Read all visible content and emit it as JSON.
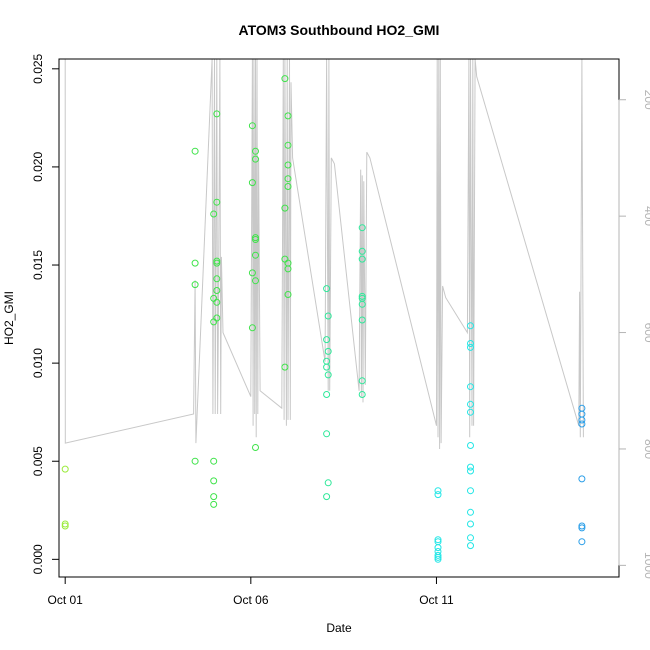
{
  "chart_data": {
    "type": "scatter",
    "title": "ATOM3 Southbound HO2_GMI",
    "xlabel": "Date",
    "ylabel": "HO2_GMI",
    "x_unit": "days",
    "xlim": [
      "2017-09-30T20:00",
      "2017-10-15T22:00"
    ],
    "x_ticks": [
      {
        "value": "2017-10-01",
        "label": "Oct 01"
      },
      {
        "value": "2017-10-06",
        "label": "Oct 06"
      },
      {
        "value": "2017-10-11",
        "label": "Oct 11"
      }
    ],
    "ylim": [
      -0.0009,
      0.0255
    ],
    "y_ticks": [
      0.0,
      0.005,
      0.01,
      0.015,
      0.02,
      0.025
    ],
    "y_tick_labels": [
      "0.000",
      "0.005",
      "0.010",
      "0.015",
      "0.020",
      "0.025"
    ],
    "secondary_axis": {
      "label": "",
      "color": "#b4b4b4",
      "ylim": [
        1020,
        130
      ],
      "reversed": true,
      "ticks": [
        200,
        400,
        600,
        800,
        1000
      ]
    },
    "pressure_profile": {
      "color": "#c8c8c8",
      "points": [
        [
          "2017-10-01T00:00",
          130
        ],
        [
          "2017-10-01T00:05",
          790
        ],
        [
          "2017-10-04T11:00",
          740
        ],
        [
          "2017-10-04T12:00",
          510
        ],
        [
          "2017-10-04T12:30",
          790
        ],
        [
          "2017-10-04T23:00",
          130
        ],
        [
          "2017-10-04T23:30",
          740
        ],
        [
          "2017-10-05T00:30",
          130
        ],
        [
          "2017-10-05T01:00",
          740
        ],
        [
          "2017-10-05T02:00",
          130
        ],
        [
          "2017-10-05T02:30",
          740
        ],
        [
          "2017-10-05T03:00",
          600
        ],
        [
          "2017-10-05T04:00",
          130
        ],
        [
          "2017-10-05T04:30",
          740
        ],
        [
          "2017-10-05T05:00",
          470
        ],
        [
          "2017-10-05T06:00",
          600
        ],
        [
          "2017-10-06T00:00",
          710
        ],
        [
          "2017-10-06T01:00",
          130
        ],
        [
          "2017-10-06T01:30",
          760
        ],
        [
          "2017-10-06T02:00",
          130
        ],
        [
          "2017-10-06T02:30",
          740
        ],
        [
          "2017-10-06T03:00",
          130
        ],
        [
          "2017-10-06T03:30",
          780
        ],
        [
          "2017-10-06T04:00",
          130
        ],
        [
          "2017-10-06T04:30",
          740
        ],
        [
          "2017-10-06T05:00",
          300
        ],
        [
          "2017-10-06T06:00",
          700
        ],
        [
          "2017-10-06T20:00",
          730
        ],
        [
          "2017-10-06T21:00",
          130
        ],
        [
          "2017-10-06T21:30",
          750
        ],
        [
          "2017-10-06T22:00",
          130
        ],
        [
          "2017-10-06T23:00",
          760
        ],
        [
          "2017-10-06T23:30",
          130
        ],
        [
          "2017-10-07T00:00",
          750
        ],
        [
          "2017-10-07T01:00",
          130
        ],
        [
          "2017-10-07T01:30",
          750
        ],
        [
          "2017-10-07T02:00",
          170
        ],
        [
          "2017-10-07T03:00",
          300
        ],
        [
          "2017-10-08T00:00",
          650
        ],
        [
          "2017-10-08T01:00",
          130
        ],
        [
          "2017-10-08T02:00",
          700
        ],
        [
          "2017-10-08T02:30",
          130
        ],
        [
          "2017-10-08T03:00",
          700
        ],
        [
          "2017-10-08T04:00",
          300
        ],
        [
          "2017-10-08T06:00",
          310
        ],
        [
          "2017-10-08T22:00",
          700
        ],
        [
          "2017-10-08T23:00",
          320
        ],
        [
          "2017-10-08T23:30",
          710
        ],
        [
          "2017-10-09T00:00",
          330
        ],
        [
          "2017-10-09T00:30",
          720
        ],
        [
          "2017-10-09T01:00",
          340
        ],
        [
          "2017-10-09T02:00",
          690
        ],
        [
          "2017-10-09T03:00",
          290
        ],
        [
          "2017-10-09T05:00",
          300
        ],
        [
          "2017-10-11T00:00",
          760
        ],
        [
          "2017-10-11T00:30",
          130
        ],
        [
          "2017-10-11T01:00",
          780
        ],
        [
          "2017-10-11T01:30",
          130
        ],
        [
          "2017-10-11T02:00",
          800
        ],
        [
          "2017-10-11T02:30",
          130
        ],
        [
          "2017-10-11T03:00",
          790
        ],
        [
          "2017-10-11T04:00",
          520
        ],
        [
          "2017-10-11T06:00",
          540
        ],
        [
          "2017-10-11T20:00",
          600
        ],
        [
          "2017-10-11T21:00",
          130
        ],
        [
          "2017-10-11T21:30",
          780
        ],
        [
          "2017-10-11T22:00",
          130
        ],
        [
          "2017-10-11T23:00",
          760
        ],
        [
          "2017-10-11T23:30",
          130
        ],
        [
          "2017-10-12T00:00",
          760
        ],
        [
          "2017-10-12T01:00",
          130
        ],
        [
          "2017-10-12T02:00",
          160
        ],
        [
          "2017-10-14T20:00",
          760
        ],
        [
          "2017-10-14T20:30",
          530
        ],
        [
          "2017-10-14T21:00",
          780
        ],
        [
          "2017-10-14T22:00",
          130
        ],
        [
          "2017-10-14T23:00",
          780
        ]
      ]
    },
    "series": [
      {
        "color": "#9aeb3a",
        "points": [
          [
            "2017-10-01T00:00",
            0.0046
          ],
          [
            "2017-10-01T00:00",
            0.0018
          ],
          [
            "2017-10-01T00:00",
            0.0017
          ]
        ]
      },
      {
        "color": "#3fe34a",
        "points": [
          [
            "2017-10-04T12:00",
            0.0208
          ],
          [
            "2017-10-04T12:00",
            0.0151
          ],
          [
            "2017-10-04T12:00",
            0.014
          ],
          [
            "2017-10-04T12:00",
            0.005
          ],
          [
            "2017-10-05T00:00",
            0.0176
          ],
          [
            "2017-10-05T00:00",
            0.0133
          ],
          [
            "2017-10-05T00:00",
            0.0121
          ],
          [
            "2017-10-05T00:00",
            0.005
          ],
          [
            "2017-10-05T00:00",
            0.004
          ],
          [
            "2017-10-05T00:00",
            0.0032
          ],
          [
            "2017-10-05T00:00",
            0.0028
          ],
          [
            "2017-10-05T02:00",
            0.0227
          ],
          [
            "2017-10-05T02:00",
            0.0182
          ],
          [
            "2017-10-05T02:00",
            0.0152
          ],
          [
            "2017-10-05T02:00",
            0.0151
          ],
          [
            "2017-10-05T02:00",
            0.0143
          ],
          [
            "2017-10-05T02:00",
            0.0137
          ],
          [
            "2017-10-05T02:00",
            0.0131
          ],
          [
            "2017-10-05T02:00",
            0.0123
          ],
          [
            "2017-10-06T01:00",
            0.0221
          ],
          [
            "2017-10-06T01:00",
            0.0192
          ],
          [
            "2017-10-06T01:00",
            0.0146
          ],
          [
            "2017-10-06T01:00",
            0.0118
          ],
          [
            "2017-10-06T03:00",
            0.0208
          ],
          [
            "2017-10-06T03:00",
            0.0204
          ],
          [
            "2017-10-06T03:00",
            0.0164
          ],
          [
            "2017-10-06T03:00",
            0.0163
          ],
          [
            "2017-10-06T03:00",
            0.0155
          ],
          [
            "2017-10-06T03:00",
            0.0142
          ],
          [
            "2017-10-06T03:00",
            0.0057
          ],
          [
            "2017-10-06T22:00",
            0.0245
          ],
          [
            "2017-10-06T22:00",
            0.0179
          ],
          [
            "2017-10-06T22:00",
            0.0153
          ],
          [
            "2017-10-06T22:00",
            0.0098
          ],
          [
            "2017-10-07T00:00",
            0.0226
          ],
          [
            "2017-10-07T00:00",
            0.0211
          ],
          [
            "2017-10-07T00:00",
            0.0201
          ],
          [
            "2017-10-07T00:00",
            0.0194
          ],
          [
            "2017-10-07T00:00",
            0.019
          ],
          [
            "2017-10-07T00:00",
            0.0151
          ],
          [
            "2017-10-07T00:00",
            0.0148
          ],
          [
            "2017-10-07T00:00",
            0.0135
          ]
        ]
      },
      {
        "color": "#2fe89a",
        "points": [
          [
            "2017-10-08T01:00",
            0.0138
          ],
          [
            "2017-10-08T01:00",
            0.0112
          ],
          [
            "2017-10-08T01:00",
            0.0101
          ],
          [
            "2017-10-08T01:00",
            0.0098
          ],
          [
            "2017-10-08T01:00",
            0.0084
          ],
          [
            "2017-10-08T01:00",
            0.0064
          ],
          [
            "2017-10-08T01:00",
            0.0032
          ],
          [
            "2017-10-08T02:00",
            0.0124
          ],
          [
            "2017-10-08T02:00",
            0.0106
          ],
          [
            "2017-10-08T02:00",
            0.0094
          ],
          [
            "2017-10-08T02:00",
            0.0039
          ],
          [
            "2017-10-09T00:00",
            0.0169
          ],
          [
            "2017-10-09T00:00",
            0.0157
          ],
          [
            "2017-10-09T00:00",
            0.0153
          ],
          [
            "2017-10-09T00:00",
            0.0134
          ],
          [
            "2017-10-09T00:00",
            0.0133
          ],
          [
            "2017-10-09T00:00",
            0.013
          ],
          [
            "2017-10-09T00:00",
            0.0122
          ],
          [
            "2017-10-09T00:00",
            0.0091
          ],
          [
            "2017-10-09T00:00",
            0.0084
          ]
        ]
      },
      {
        "color": "#22e6e6",
        "points": [
          [
            "2017-10-11T01:00",
            0.0035
          ],
          [
            "2017-10-11T01:00",
            0.0033
          ],
          [
            "2017-10-11T01:00",
            0.001
          ],
          [
            "2017-10-11T01:00",
            0.0009
          ],
          [
            "2017-10-11T01:00",
            0.0006
          ],
          [
            "2017-10-11T01:00",
            0.0004
          ],
          [
            "2017-10-11T01:00",
            0.0002
          ],
          [
            "2017-10-11T01:00",
            0.0001
          ],
          [
            "2017-10-11T01:00",
            0.0
          ],
          [
            "2017-10-11T22:00",
            0.0119
          ],
          [
            "2017-10-11T22:00",
            0.011
          ],
          [
            "2017-10-11T22:00",
            0.0108
          ],
          [
            "2017-10-11T22:00",
            0.0088
          ],
          [
            "2017-10-11T22:00",
            0.0079
          ],
          [
            "2017-10-11T22:00",
            0.0075
          ],
          [
            "2017-10-11T22:00",
            0.0058
          ],
          [
            "2017-10-11T22:00",
            0.0047
          ],
          [
            "2017-10-11T22:00",
            0.0045
          ],
          [
            "2017-10-11T22:00",
            0.0035
          ],
          [
            "2017-10-11T22:00",
            0.0024
          ],
          [
            "2017-10-11T22:00",
            0.0018
          ],
          [
            "2017-10-11T22:00",
            0.0011
          ],
          [
            "2017-10-11T22:00",
            0.0007
          ]
        ]
      },
      {
        "color": "#2a9ee8",
        "points": [
          [
            "2017-10-14T22:00",
            0.0077
          ],
          [
            "2017-10-14T22:00",
            0.0074
          ],
          [
            "2017-10-14T22:00",
            0.0071
          ],
          [
            "2017-10-14T22:00",
            0.0069
          ],
          [
            "2017-10-14T22:00",
            0.0041
          ],
          [
            "2017-10-14T22:00",
            0.0017
          ],
          [
            "2017-10-14T22:00",
            0.0016
          ],
          [
            "2017-10-14T22:00",
            0.0009
          ]
        ]
      }
    ]
  }
}
